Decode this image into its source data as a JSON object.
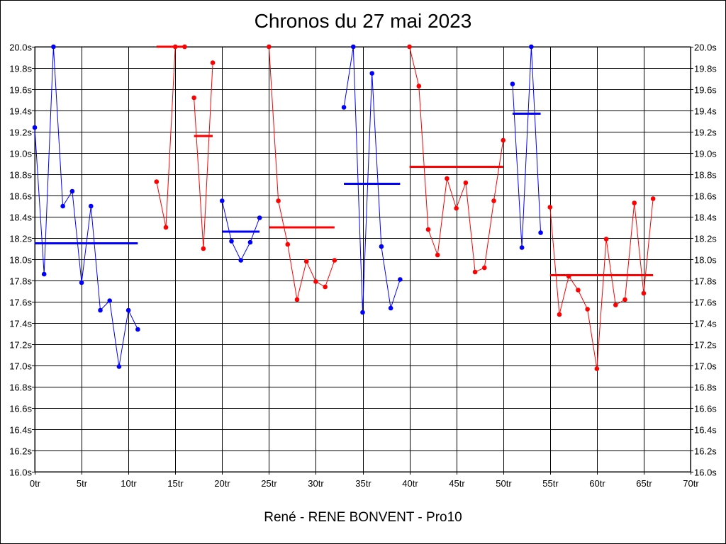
{
  "chart_data": {
    "type": "line",
    "title": "Chronos du 27 mai 2023",
    "xlabel": "René - RENE BONVENT - Pro10",
    "xlim": [
      0,
      70
    ],
    "ylim": [
      16.0,
      20.0
    ],
    "x_ticks": [
      0,
      5,
      10,
      15,
      20,
      25,
      30,
      35,
      40,
      45,
      50,
      55,
      60,
      65,
      70
    ],
    "x_tick_labels": [
      "0tr",
      "5tr",
      "10tr",
      "15tr",
      "20tr",
      "25tr",
      "30tr",
      "35tr",
      "40tr",
      "45tr",
      "50tr",
      "55tr",
      "60tr",
      "65tr",
      "70tr"
    ],
    "y_ticks": [
      16.0,
      16.2,
      16.4,
      16.6,
      16.8,
      17.0,
      17.2,
      17.4,
      17.6,
      17.8,
      18.0,
      18.2,
      18.4,
      18.6,
      18.8,
      19.0,
      19.2,
      19.4,
      19.6,
      19.8,
      20.0
    ],
    "y_tick_labels": [
      "16.0s",
      "16.2s",
      "16.4s",
      "16.6s",
      "16.8s",
      "17.0s",
      "17.2s",
      "17.4s",
      "17.6s",
      "17.8s",
      "18.0s",
      "18.2s",
      "18.4s",
      "18.6s",
      "18.8s",
      "19.0s",
      "19.2s",
      "19.4s",
      "19.6s",
      "19.8s",
      "20.0s"
    ],
    "grid": true,
    "colors": {
      "blue": "#0000ff",
      "red": "#ff0000"
    },
    "series": [
      {
        "color": "blue",
        "x": [
          0,
          1,
          2,
          3,
          4,
          5,
          6,
          7,
          8,
          9,
          10,
          11
        ],
        "y": [
          19.24,
          17.86,
          20.0,
          18.5,
          18.64,
          17.78,
          18.5,
          17.52,
          17.61,
          16.99,
          17.52,
          17.34
        ],
        "average": 18.15
      },
      {
        "color": "red",
        "x": [
          13,
          14,
          15,
          16
        ],
        "y": [
          18.73,
          18.3,
          20.0,
          20.0
        ],
        "average": 20.0,
        "average_x": [
          13,
          16
        ]
      },
      {
        "color": "red",
        "x": [
          17,
          18,
          19
        ],
        "y": [
          19.52,
          18.1,
          19.85
        ],
        "average": 19.16,
        "average_x": [
          17,
          19
        ]
      },
      {
        "color": "blue",
        "x": [
          20,
          21,
          22,
          23,
          24
        ],
        "y": [
          18.55,
          18.17,
          17.99,
          18.16,
          18.39
        ],
        "average": 18.26,
        "average_x": [
          20,
          24
        ]
      },
      {
        "color": "red",
        "x": [
          25,
          26,
          27,
          28,
          29,
          30,
          31,
          32
        ],
        "y": [
          20.0,
          18.55,
          18.14,
          17.62,
          17.98,
          17.79,
          17.74,
          17.99
        ],
        "average": 18.3,
        "average_x": [
          25,
          32
        ]
      },
      {
        "color": "blue",
        "x": [
          33,
          34,
          35,
          36,
          37,
          38,
          39
        ],
        "y": [
          19.43,
          20.0,
          17.5,
          19.75,
          18.12,
          17.54,
          17.81
        ],
        "average": 18.71,
        "average_x": [
          33,
          39
        ]
      },
      {
        "color": "red",
        "x": [
          40,
          41,
          42,
          43,
          44,
          45,
          46,
          47,
          48,
          49,
          50
        ],
        "y": [
          20.0,
          19.63,
          18.28,
          18.04,
          18.76,
          18.48,
          18.72,
          17.88,
          17.92,
          18.55,
          19.12
        ],
        "average": 18.87,
        "average_x": [
          40,
          50
        ]
      },
      {
        "color": "blue",
        "x": [
          51,
          52,
          53,
          54
        ],
        "y": [
          19.65,
          18.11,
          20.0,
          18.25
        ],
        "average": 19.37,
        "average_x": [
          51,
          54
        ]
      },
      {
        "color": "red",
        "x": [
          55,
          56,
          57,
          58,
          59,
          60,
          61,
          62,
          63,
          64,
          65,
          66
        ],
        "y": [
          18.49,
          17.48,
          17.84,
          17.71,
          17.53,
          16.97,
          18.19,
          17.57,
          17.62,
          18.53,
          17.68,
          18.57
        ],
        "average": 17.85,
        "average_x": [
          55,
          66
        ]
      }
    ]
  }
}
